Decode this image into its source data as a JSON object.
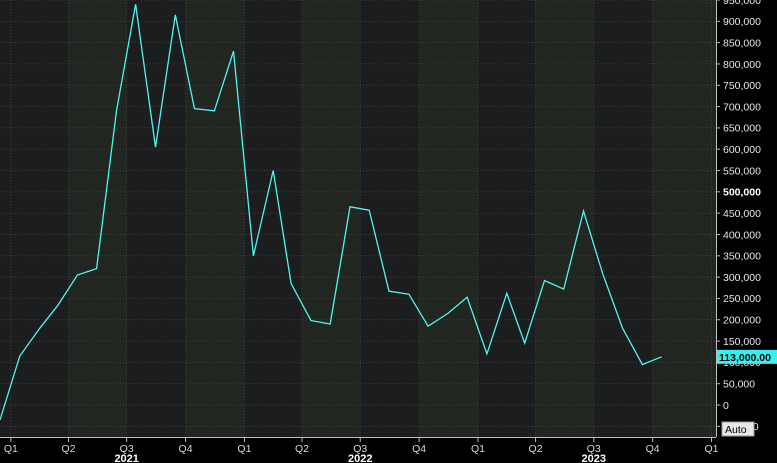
{
  "chart_data": {
    "type": "line",
    "title": "",
    "xlabel": "",
    "ylabel": "",
    "ylim": [
      -75000,
      950000
    ],
    "y_ticks": [
      950000,
      900000,
      850000,
      800000,
      750000,
      700000,
      650000,
      600000,
      550000,
      500000,
      450000,
      400000,
      350000,
      300000,
      250000,
      200000,
      150000,
      100000,
      50000,
      0,
      -50000
    ],
    "y_tick_labels": [
      "950,000",
      "900,000",
      "850,000",
      "800,000",
      "750,000",
      "700,000",
      "650,000",
      "600,000",
      "550,000",
      "500,000",
      "450,000",
      "400,000",
      "350,000",
      "300,000",
      "250,000",
      "200,000",
      "150,000",
      "100,000",
      "50,000",
      "0",
      "-50,000"
    ],
    "y_tick_bold": [
      "500,000"
    ],
    "xlim": [
      "2020-12-15",
      "2024-01-08"
    ],
    "x_ticks": [
      {
        "date": "2021-01-01",
        "label": "Q1"
      },
      {
        "date": "2021-04-01",
        "label": "Q2"
      },
      {
        "date": "2021-07-01",
        "label": "Q3"
      },
      {
        "date": "2021-10-01",
        "label": "Q4"
      },
      {
        "date": "2022-01-01",
        "label": "Q1"
      },
      {
        "date": "2022-04-01",
        "label": "Q2"
      },
      {
        "date": "2022-07-01",
        "label": "Q3"
      },
      {
        "date": "2022-10-01",
        "label": "Q4"
      },
      {
        "date": "2023-01-01",
        "label": "Q1"
      },
      {
        "date": "2023-04-01",
        "label": "Q2"
      },
      {
        "date": "2023-07-01",
        "label": "Q3"
      },
      {
        "date": "2023-10-01",
        "label": "Q4"
      },
      {
        "date": "2024-01-01",
        "label": "Q1"
      }
    ],
    "year_labels": [
      {
        "date": "2021-07-01",
        "label": "2021"
      },
      {
        "date": "2022-07-01",
        "label": "2022"
      },
      {
        "date": "2023-07-01",
        "label": "2023"
      }
    ],
    "series": [
      {
        "x": [
          "2020-12-15",
          "2021-01-15",
          "2021-02-15",
          "2021-03-15",
          "2021-04-15",
          "2021-05-15",
          "2021-06-15",
          "2021-07-15",
          "2021-08-15",
          "2021-09-15",
          "2021-10-15",
          "2021-11-15",
          "2021-12-15",
          "2022-01-15",
          "2022-02-15",
          "2022-03-15",
          "2022-04-15",
          "2022-05-15",
          "2022-06-15",
          "2022-07-15",
          "2022-08-15",
          "2022-09-15",
          "2022-10-15",
          "2022-11-15",
          "2022-12-15",
          "2023-01-15",
          "2023-02-15",
          "2023-03-15",
          "2023-04-15",
          "2023-05-15",
          "2023-06-15",
          "2023-07-15",
          "2023-08-15",
          "2023-09-15",
          "2023-10-15"
        ],
        "values": [
          -35000,
          115000,
          180000,
          233000,
          305000,
          320000,
          690000,
          940000,
          605000,
          915000,
          695000,
          690000,
          830000,
          350000,
          550000,
          285000,
          198000,
          190000,
          465000,
          457000,
          267000,
          260000,
          185000,
          215000,
          253000,
          120000,
          262000,
          145000,
          292000,
          272000,
          455000,
          308000,
          180000,
          95000,
          113000
        ]
      }
    ],
    "last_value_label": "113,000.00",
    "scale_button": "Auto",
    "colors": {
      "background": "#000000",
      "band_dark": "#1c1d1e",
      "band_light": "#222621",
      "line": "#4ff5f0",
      "grid": "#4a4a4a",
      "tag_bg": "#35f2ee"
    }
  }
}
